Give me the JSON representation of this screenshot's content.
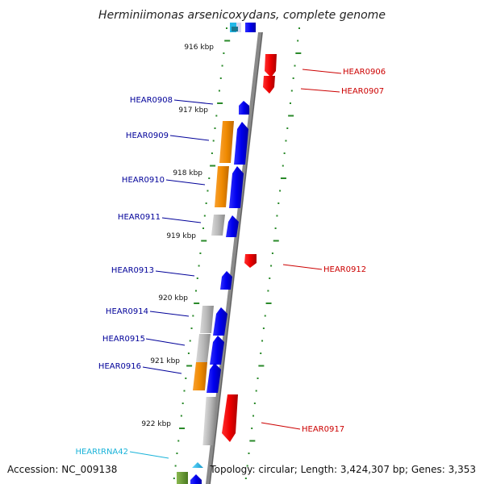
{
  "title": "Herminiimonas arsenicoxydans, complete genome",
  "footer": {
    "accession": "Accession: NC_009138",
    "topology": "Topology: circular; Length: 3,424,307 bp; Genes: 3,353"
  },
  "kbp_labels": [
    "916 kbp",
    "917 kbp",
    "918 kbp",
    "919 kbp",
    "920 kbp",
    "921 kbp",
    "922 kbp"
  ],
  "gene_labels": [
    {
      "text": "HEAR0906",
      "strand": "plus"
    },
    {
      "text": "HEAR0907",
      "strand": "plus"
    },
    {
      "text": "HEAR0908",
      "strand": "minus"
    },
    {
      "text": "HEAR0909",
      "strand": "minus"
    },
    {
      "text": "HEAR0910",
      "strand": "minus"
    },
    {
      "text": "HEAR0911",
      "strand": "minus"
    },
    {
      "text": "HEAR0912",
      "strand": "plus"
    },
    {
      "text": "HEAR0913",
      "strand": "minus"
    },
    {
      "text": "HEAR0914",
      "strand": "minus"
    },
    {
      "text": "HEAR0915",
      "strand": "minus"
    },
    {
      "text": "HEAR0916",
      "strand": "minus"
    },
    {
      "text": "HEAR0917",
      "strand": "plus"
    },
    {
      "text": "HEARtRNA42",
      "strand": "rna"
    }
  ],
  "colors": {
    "plus_label": "#cc0000",
    "minus_label": "#000099",
    "rna_label": "#1ab3d9",
    "backbone": "#8a8a8a",
    "tick": "#2a8a2a",
    "gene_blue": "#0000ee",
    "gene_red": "#ee0000",
    "gene_orange": "#f08a00",
    "gene_gray": "#b8b8b8",
    "gene_cyan": "#22b8e8",
    "gene_green": "#6a9a30"
  }
}
